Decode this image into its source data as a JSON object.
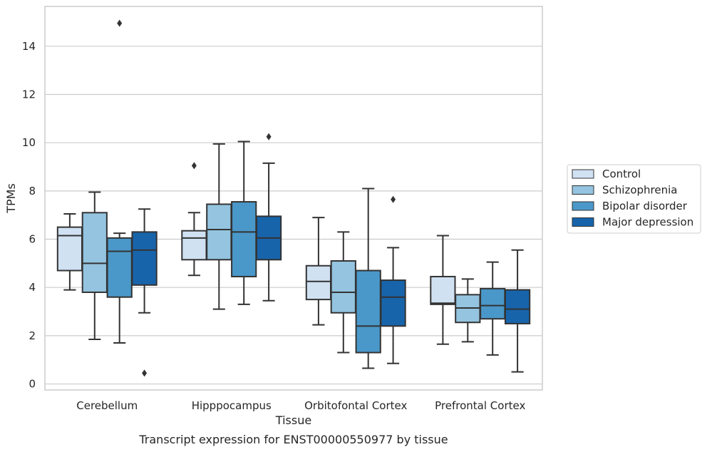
{
  "chart_data": {
    "type": "boxplot",
    "title": "",
    "caption": "Transcript expression for ENST00000550977 by tissue",
    "xlabel": "Tissue",
    "ylabel": "TPMs",
    "ylim": [
      -0.25,
      15.65
    ],
    "yticks": [
      0,
      2,
      4,
      6,
      8,
      10,
      12,
      14
    ],
    "ytick_labels": [
      "0",
      "2",
      "4",
      "6",
      "8",
      "10",
      "12",
      "14"
    ],
    "grid": "horizontal",
    "legend_position": "right",
    "categories": [
      "Cerebellum",
      "Hipppocampus",
      "Orbitofontal Cortex",
      "Prefrontal Cortex"
    ],
    "series": [
      {
        "name": "Control",
        "color": "#d0e1f2",
        "boxes": [
          {
            "whislo": 3.9,
            "q1": 4.7,
            "med": 6.15,
            "q3": 6.5,
            "whishi": 7.05,
            "fliers": []
          },
          {
            "whislo": 4.5,
            "q1": 5.15,
            "med": 6.05,
            "q3": 6.35,
            "whishi": 7.1,
            "fliers": [
              9.05
            ]
          },
          {
            "whislo": 2.45,
            "q1": 3.5,
            "med": 4.25,
            "q3": 4.9,
            "whishi": 6.9,
            "fliers": []
          },
          {
            "whislo": 1.65,
            "q1": 3.3,
            "med": 3.35,
            "q3": 4.45,
            "whishi": 6.15,
            "fliers": []
          }
        ]
      },
      {
        "name": "Schizophrenia",
        "color": "#94c4df",
        "boxes": [
          {
            "whislo": 1.85,
            "q1": 3.8,
            "med": 5.0,
            "q3": 7.1,
            "whishi": 7.95,
            "fliers": []
          },
          {
            "whislo": 3.1,
            "q1": 5.15,
            "med": 6.4,
            "q3": 7.45,
            "whishi": 9.95,
            "fliers": []
          },
          {
            "whislo": 1.3,
            "q1": 2.95,
            "med": 3.8,
            "q3": 5.1,
            "whishi": 6.3,
            "fliers": []
          },
          {
            "whislo": 1.75,
            "q1": 2.55,
            "med": 3.15,
            "q3": 3.7,
            "whishi": 4.35,
            "fliers": []
          }
        ]
      },
      {
        "name": "Bipolar disorder",
        "color": "#4a98c9",
        "boxes": [
          {
            "whislo": 1.7,
            "q1": 3.6,
            "med": 5.5,
            "q3": 6.05,
            "whishi": 6.25,
            "fliers": [
              14.95
            ]
          },
          {
            "whislo": 3.3,
            "q1": 4.45,
            "med": 6.3,
            "q3": 7.55,
            "whishi": 10.05,
            "fliers": []
          },
          {
            "whislo": 0.65,
            "q1": 1.3,
            "med": 2.4,
            "q3": 4.7,
            "whishi": 8.1,
            "fliers": []
          },
          {
            "whislo": 1.2,
            "q1": 2.7,
            "med": 3.25,
            "q3": 3.95,
            "whishi": 5.05,
            "fliers": []
          }
        ]
      },
      {
        "name": "Major depression",
        "color": "#1764ab",
        "boxes": [
          {
            "whislo": 2.95,
            "q1": 4.1,
            "med": 5.55,
            "q3": 6.3,
            "whishi": 7.25,
            "fliers": [
              0.45
            ]
          },
          {
            "whislo": 3.45,
            "q1": 5.15,
            "med": 6.05,
            "q3": 6.95,
            "whishi": 9.15,
            "fliers": [
              10.25
            ]
          },
          {
            "whislo": 0.85,
            "q1": 2.4,
            "med": 3.6,
            "q3": 4.3,
            "whishi": 5.65,
            "fliers": [
              7.65
            ]
          },
          {
            "whislo": 0.5,
            "q1": 2.5,
            "med": 3.1,
            "q3": 3.9,
            "whishi": 5.55,
            "fliers": []
          }
        ]
      }
    ]
  }
}
